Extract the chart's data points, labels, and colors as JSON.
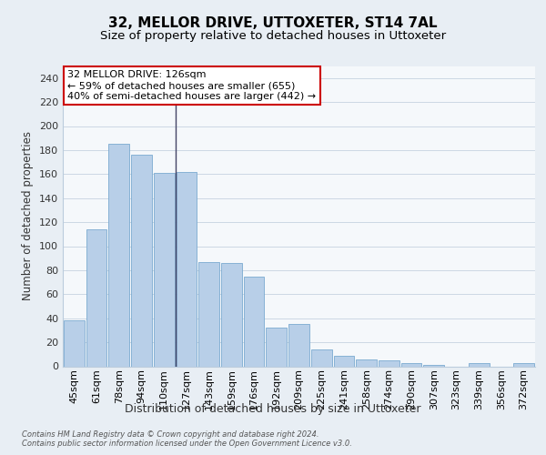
{
  "title": "32, MELLOR DRIVE, UTTOXETER, ST14 7AL",
  "subtitle": "Size of property relative to detached houses in Uttoxeter",
  "xlabel": "Distribution of detached houses by size in Uttoxeter",
  "ylabel": "Number of detached properties",
  "categories": [
    "45sqm",
    "61sqm",
    "78sqm",
    "94sqm",
    "110sqm",
    "127sqm",
    "143sqm",
    "159sqm",
    "176sqm",
    "192sqm",
    "209sqm",
    "225sqm",
    "241sqm",
    "258sqm",
    "274sqm",
    "290sqm",
    "307sqm",
    "323sqm",
    "339sqm",
    "356sqm",
    "372sqm"
  ],
  "bar_heights": [
    38,
    114,
    185,
    176,
    161,
    162,
    87,
    86,
    75,
    32,
    35,
    14,
    9,
    6,
    5,
    3,
    1,
    0,
    3,
    0,
    3
  ],
  "bar_fill_color": "#b8cfe8",
  "bar_edge_color": "#7aaad0",
  "annotation_text": "32 MELLOR DRIVE: 126sqm\n← 59% of detached houses are smaller (655)\n40% of semi-detached houses are larger (442) →",
  "annotation_box_facecolor": "#ffffff",
  "annotation_box_edgecolor": "#cc0000",
  "vline_color": "#444466",
  "ylim": [
    0,
    250
  ],
  "yticks": [
    0,
    20,
    40,
    60,
    80,
    100,
    120,
    140,
    160,
    180,
    200,
    220,
    240
  ],
  "bg_color": "#e8eef4",
  "plot_bg_color": "#f5f8fb",
  "grid_color": "#ccd8e4",
  "footer": "Contains HM Land Registry data © Crown copyright and database right 2024.\nContains public sector information licensed under the Open Government Licence v3.0.",
  "title_fontsize": 11,
  "subtitle_fontsize": 9.5,
  "xlabel_fontsize": 9,
  "ylabel_fontsize": 8.5,
  "tick_fontsize": 8,
  "ann_fontsize": 8
}
